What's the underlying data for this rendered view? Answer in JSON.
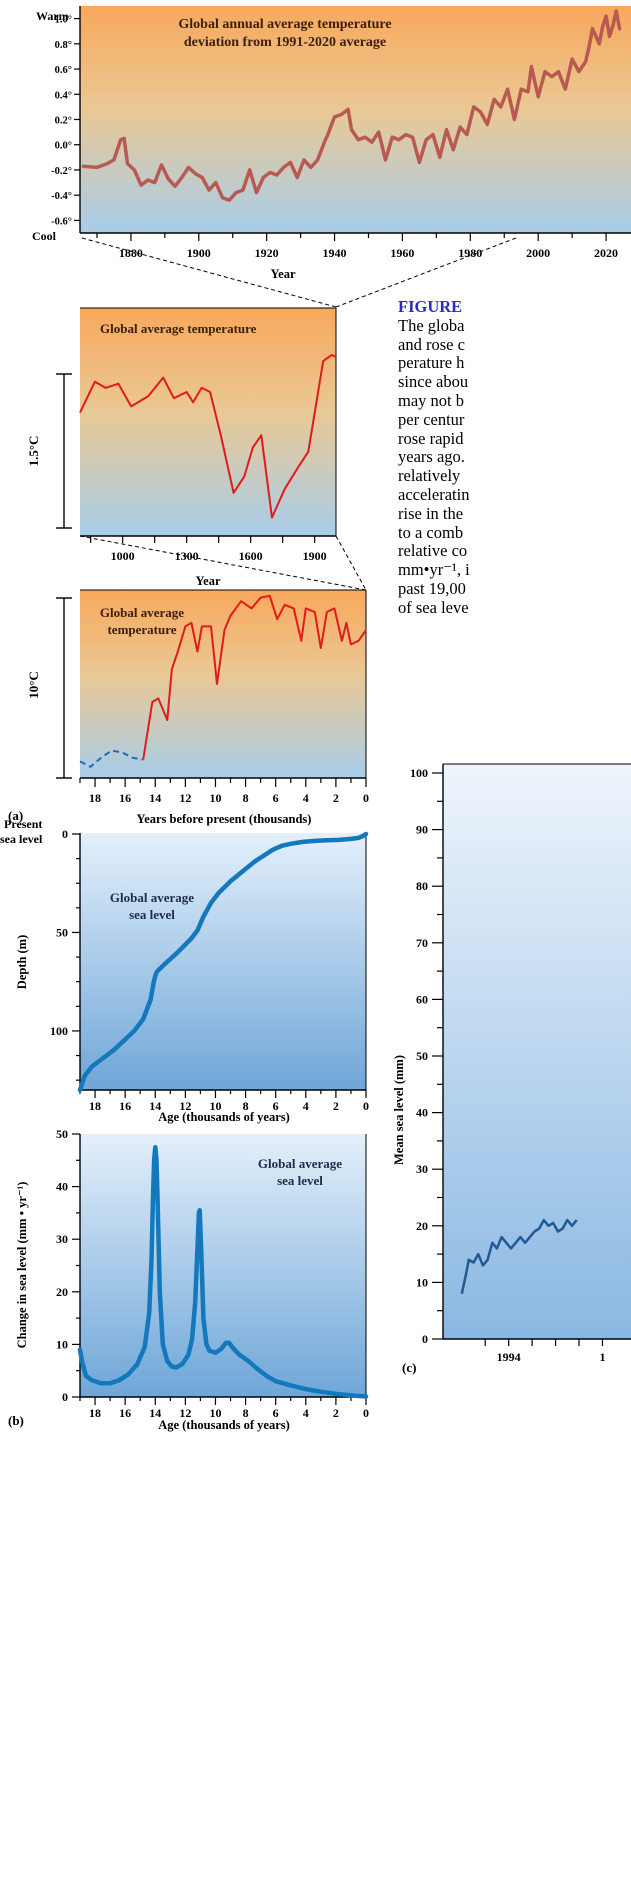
{
  "panel_letters": {
    "a": "(a)",
    "b": "(b)",
    "c": "(c)"
  },
  "caption": {
    "figure_label": "FIGURE",
    "lines": [
      "The globa",
      "and rose c",
      "perature h",
      "since abou",
      "may not b",
      "per centur",
      "rose rapid",
      "years ago.",
      "relatively",
      "acceleratin",
      "rise in the",
      "to a comb",
      "relative co",
      "mm•yr⁻¹, i",
      "past 19,00",
      "of sea leve"
    ]
  },
  "chart_data": [
    {
      "id": "modern-temperature",
      "type": "line",
      "title": "Global annual average temperature\ndeviation from 1991-2020 average",
      "xlabel": "Year",
      "ylabel_top": "Warm",
      "ylabel_bottom": "Cool",
      "xlim": [
        1865,
        2030
      ],
      "ylim": [
        -0.7,
        1.1
      ],
      "xticks": [
        "1880",
        "1900",
        "1920",
        "1940",
        "1960",
        "1980",
        "2000",
        "2020"
      ],
      "yticks": [
        "1.0°",
        "0.8°",
        "0.6°",
        "0.4°",
        "0.2°",
        "0.0°",
        "-0.2°",
        "-0.4°",
        "-0.6°"
      ],
      "series": [
        {
          "x": [
            1866,
            1870,
            1873,
            1875,
            1877,
            1878,
            1879,
            1881,
            1883,
            1885,
            1887,
            1889,
            1891,
            1893,
            1895,
            1897,
            1899,
            1901,
            1903,
            1905,
            1907,
            1909,
            1911,
            1913,
            1915,
            1917,
            1919,
            1921,
            1923,
            1925,
            1927,
            1929,
            1931,
            1933,
            1935,
            1937,
            1938,
            1940,
            1942,
            1944,
            1945,
            1947,
            1949,
            1951,
            1953,
            1955,
            1957,
            1959,
            1961,
            1963,
            1965,
            1967,
            1969,
            1971,
            1973,
            1975,
            1977,
            1979,
            1981,
            1983,
            1985,
            1987,
            1989,
            1991,
            1993,
            1995,
            1997,
            1998,
            2000,
            2002,
            2004,
            2006,
            2008,
            2010,
            2012,
            2014,
            2015,
            2016,
            2017,
            2018,
            2019,
            2020,
            2021,
            2022,
            2023,
            2024
          ],
          "y": [
            -0.17,
            -0.18,
            -0.15,
            -0.12,
            0.04,
            0.05,
            -0.15,
            -0.2,
            -0.32,
            -0.28,
            -0.3,
            -0.16,
            -0.27,
            -0.33,
            -0.26,
            -0.18,
            -0.23,
            -0.26,
            -0.36,
            -0.3,
            -0.42,
            -0.44,
            -0.38,
            -0.36,
            -0.2,
            -0.38,
            -0.26,
            -0.22,
            -0.24,
            -0.18,
            -0.14,
            -0.26,
            -0.12,
            -0.18,
            -0.12,
            0.02,
            0.08,
            0.22,
            0.24,
            0.28,
            0.12,
            0.04,
            0.06,
            0.02,
            0.1,
            -0.12,
            0.06,
            0.04,
            0.08,
            0.06,
            -0.14,
            0.04,
            0.08,
            -0.1,
            0.12,
            -0.04,
            0.14,
            0.08,
            0.3,
            0.26,
            0.16,
            0.36,
            0.3,
            0.44,
            0.2,
            0.44,
            0.42,
            0.62,
            0.38,
            0.58,
            0.54,
            0.58,
            0.44,
            0.68,
            0.58,
            0.66,
            0.78,
            0.92,
            0.86,
            0.8,
            0.94,
            1.02,
            0.86,
            0.94,
            1.06,
            0.92
          ]
        }
      ]
    },
    {
      "id": "millennial-temperature",
      "type": "line",
      "title": "Global average temperature",
      "xlabel": "Year",
      "scale_label": "1.5°C",
      "xticks": [
        "1000",
        "1300",
        "1600",
        "1900"
      ],
      "xlim": [
        800,
        2000
      ],
      "ylim": [
        0,
        1
      ],
      "series": [
        {
          "x": [
            800,
            870,
            920,
            980,
            1040,
            1120,
            1190,
            1240,
            1300,
            1330,
            1370,
            1410,
            1460,
            1520,
            1570,
            1610,
            1650,
            1700,
            1760,
            1820,
            1870,
            1940,
            1980,
            2000
          ],
          "y": [
            0.57,
            0.72,
            0.69,
            0.71,
            0.6,
            0.65,
            0.74,
            0.64,
            0.67,
            0.62,
            0.69,
            0.67,
            0.46,
            0.18,
            0.26,
            0.4,
            0.46,
            0.06,
            0.2,
            0.3,
            0.38,
            0.82,
            0.85,
            0.84
          ]
        }
      ]
    },
    {
      "id": "deglacial-temperature",
      "type": "line",
      "title": "Global average\ntemperature",
      "xlabel": "Years before present (thousands)",
      "scale_label": "10°C",
      "xticks": [
        "18",
        "16",
        "14",
        "12",
        "10",
        "8",
        "6",
        "4",
        "2",
        "0"
      ],
      "xlim": [
        19,
        0
      ],
      "ylim": [
        0,
        1
      ],
      "series": [
        {
          "style": "dashed",
          "x": [
            19,
            18.3,
            17.6,
            16.9,
            16.2,
            15.5,
            14.8
          ],
          "y": [
            0.07,
            0.04,
            0.09,
            0.13,
            0.12,
            0.09,
            0.08
          ]
        },
        {
          "style": "solid",
          "x": [
            14.8,
            14.2,
            13.8,
            13.2,
            12.9,
            12.5,
            12.0,
            11.6,
            11.2,
            10.9,
            10.3,
            9.9,
            9.4,
            9.0,
            8.3,
            7.6,
            7.0,
            6.4,
            5.9,
            5.4,
            4.8,
            4.3,
            4.0,
            3.4,
            3.0,
            2.6,
            2.1,
            1.6,
            1.3,
            1.0,
            0.5,
            0.0
          ],
          "y": [
            0.08,
            0.4,
            0.42,
            0.3,
            0.58,
            0.68,
            0.82,
            0.84,
            0.68,
            0.82,
            0.82,
            0.5,
            0.8,
            0.88,
            0.96,
            0.92,
            0.98,
            0.99,
            0.86,
            0.94,
            0.92,
            0.74,
            0.92,
            0.9,
            0.7,
            0.9,
            0.92,
            0.74,
            0.84,
            0.72,
            0.74,
            0.8
          ]
        }
      ]
    },
    {
      "id": "sea-level-depth",
      "type": "line",
      "title": "Global average\nsea level",
      "xlabel": "Age (thousands of years)",
      "ylabel": "Depth (m)",
      "present_label": "Present\nsea level",
      "xticks": [
        "18",
        "16",
        "14",
        "12",
        "10",
        "8",
        "6",
        "4",
        "2",
        "0"
      ],
      "yticks": [
        "0",
        "50",
        "100"
      ],
      "xlim": [
        19,
        0
      ],
      "ylim": [
        130,
        0
      ],
      "series": [
        {
          "x": [
            19,
            18.7,
            18.2,
            17.5,
            16.8,
            16.1,
            15.4,
            14.8,
            14.3,
            14.1,
            14.0,
            13.9,
            13.5,
            12.5,
            11.6,
            11.2,
            10.8,
            10.3,
            9.8,
            9.0,
            8.2,
            7.4,
            6.8,
            6.2,
            5.6,
            5.0,
            4.2,
            3.4,
            2.6,
            1.8,
            1.0,
            0.5,
            0.2,
            0.0
          ],
          "y": [
            130,
            123,
            118,
            114,
            110,
            105,
            100,
            94,
            84,
            75,
            72,
            70,
            67,
            60,
            53,
            49,
            42,
            35,
            30,
            24,
            19,
            14,
            11,
            8,
            6,
            5,
            4,
            3.5,
            3.2,
            3,
            2.5,
            2,
            1,
            0
          ]
        }
      ]
    },
    {
      "id": "sea-level-rate",
      "type": "line",
      "title": "Global average\nsea level",
      "xlabel": "Age (thousands of years)",
      "ylabel": "Change in sea level (mm • yr⁻¹)",
      "xticks": [
        "18",
        "16",
        "14",
        "12",
        "10",
        "8",
        "6",
        "4",
        "2",
        "0"
      ],
      "yticks": [
        "0",
        "10",
        "20",
        "30",
        "40",
        "50"
      ],
      "xlim": [
        19,
        0
      ],
      "ylim": [
        0,
        50
      ],
      "series": [
        {
          "x": [
            19,
            18.85,
            18.6,
            18.2,
            17.6,
            17.0,
            16.4,
            15.8,
            15.2,
            14.7,
            14.4,
            14.25,
            14.15,
            14.08,
            14.0,
            13.92,
            13.85,
            13.7,
            13.5,
            13.2,
            12.9,
            12.6,
            12.2,
            11.8,
            11.55,
            11.35,
            11.2,
            11.1,
            11.05,
            10.95,
            10.8,
            10.6,
            10.4,
            10.0,
            9.6,
            9.3,
            9.1,
            8.8,
            8.4,
            7.8,
            7.2,
            6.6,
            6.0,
            5.0,
            4.0,
            3.0,
            2.0,
            1.0,
            0.0
          ],
          "y": [
            9,
            6.5,
            4,
            3.2,
            2.6,
            2.6,
            3.2,
            4.3,
            6.2,
            9.5,
            16,
            26,
            38,
            45,
            47.5,
            45,
            38,
            20,
            10,
            6.8,
            5.8,
            5.6,
            6.3,
            8,
            11,
            18,
            28,
            35,
            35.5,
            28,
            15,
            10,
            8.8,
            8.4,
            9.2,
            10.3,
            10.3,
            9.2,
            8,
            6.8,
            5.3,
            4,
            3,
            2.2,
            1.5,
            1.0,
            0.6,
            0.3,
            0.1
          ]
        }
      ]
    },
    {
      "id": "satellite-sea-level",
      "type": "line",
      "ylabel": "Mean sea level (mm)",
      "xticks": [
        "1994",
        "1"
      ],
      "yticks": [
        "0",
        "10",
        "20",
        "30",
        "40",
        "50",
        "60",
        "70",
        "80",
        "90",
        "100"
      ],
      "ylim": [
        0,
        100
      ],
      "xlim": [
        1992.6,
        1996.8
      ],
      "series": [
        {
          "x": [
            1993.0,
            1993.08,
            1993.15,
            1993.25,
            1993.35,
            1993.45,
            1993.55,
            1993.65,
            1993.75,
            1993.85,
            1993.95,
            1994.05,
            1994.15,
            1994.25,
            1994.35,
            1994.45,
            1994.55,
            1994.65,
            1994.75,
            1994.85,
            1994.95,
            1995.05,
            1995.15,
            1995.25,
            1995.35,
            1995.45
          ],
          "y": [
            8,
            11,
            14,
            13.5,
            15,
            13,
            14,
            17,
            16,
            18,
            17,
            16,
            17,
            18,
            17,
            18,
            19,
            19.5,
            21,
            20,
            20.5,
            19,
            19.5,
            21,
            20,
            21
          ]
        }
      ]
    }
  ]
}
